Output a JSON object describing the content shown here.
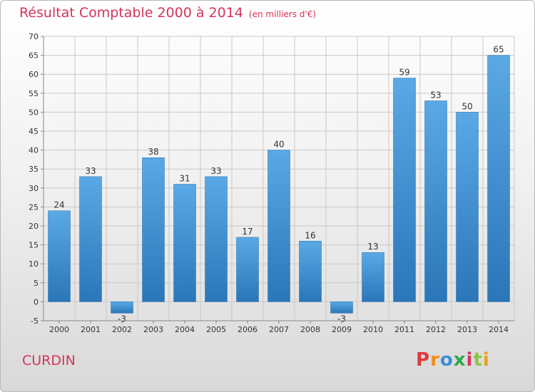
{
  "title": {
    "main": "Résultat Comptable 2000 à 2014",
    "unit": "(en milliers d'€)"
  },
  "commune": "CURDIN",
  "logo": {
    "text": "Proxiti",
    "colors": [
      "#e03a3a",
      "#f28c1c",
      "#3a8fd6",
      "#2fa84f",
      "#d6345a",
      "#8cc63f",
      "#e8a21a"
    ]
  },
  "colors": {
    "title": "#d6345a",
    "bar_top": "#5aa9e6",
    "bar_bottom": "#2a76b8"
  },
  "chart_data": {
    "type": "bar",
    "categories": [
      "2000",
      "2001",
      "2002",
      "2003",
      "2004",
      "2005",
      "2006",
      "2007",
      "2008",
      "2009",
      "2010",
      "2011",
      "2012",
      "2013",
      "2014"
    ],
    "values": [
      24,
      33,
      -3,
      38,
      31,
      33,
      17,
      40,
      16,
      -3,
      13,
      59,
      53,
      50,
      65
    ],
    "title": "Résultat Comptable 2000 à 2014",
    "ylim": [
      -5,
      70
    ],
    "yticks": [
      -5,
      0,
      5,
      10,
      15,
      20,
      25,
      30,
      35,
      40,
      45,
      50,
      55,
      60,
      65,
      70
    ],
    "grid": true
  }
}
